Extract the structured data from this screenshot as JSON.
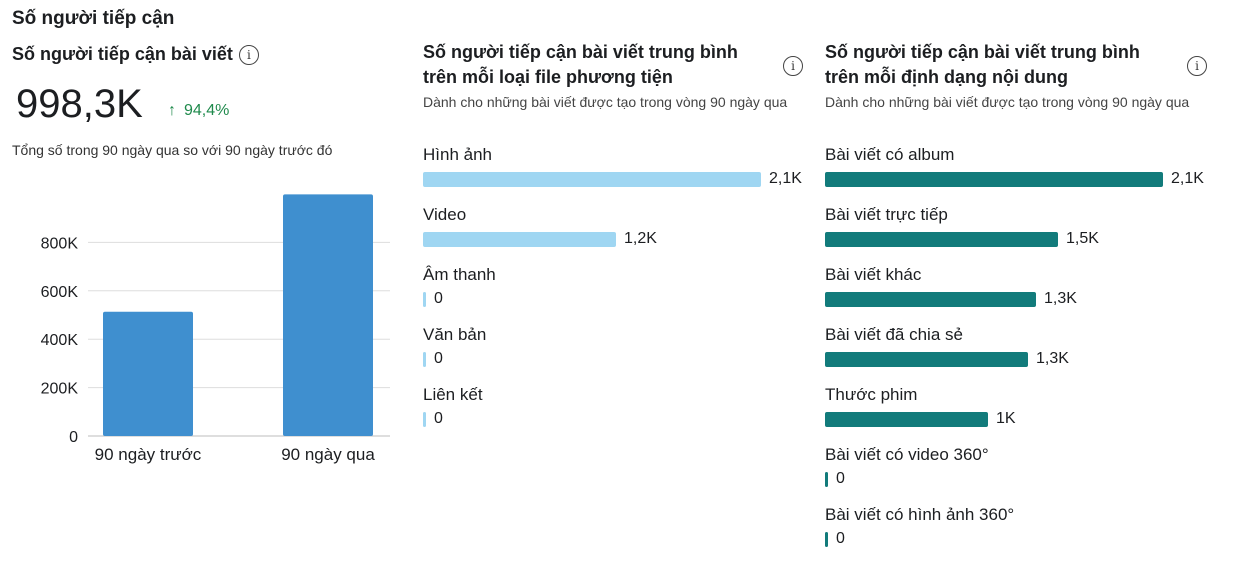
{
  "section_title": "Số người tiếp cận",
  "panel1": {
    "title": "Số người tiếp cận bài viết",
    "info_icon": "info-icon",
    "value": "998,3K",
    "delta_arrow": "↑",
    "delta": "94,4%",
    "subtitle": "Tổng số trong 90 ngày qua so với 90 ngày trước đó"
  },
  "panel2": {
    "title": "Số người tiếp cận bài viết trung bình trên mỗi loại file phương tiện",
    "subtitle": "Dành cho những bài viết được tạo trong vòng 90 ngày qua",
    "info_icon": "info-icon"
  },
  "panel3": {
    "title": "Số người tiếp cận bài viết trung bình trên mỗi định dạng nội dung",
    "subtitle": "Dành cho những bài viết được tạo trong vòng 90 ngày qua",
    "info_icon": "info-icon"
  },
  "chart_data": [
    {
      "type": "bar",
      "categories": [
        "90 ngày trước",
        "90 ngày qua"
      ],
      "values": [
        513500,
        998300
      ],
      "ylim": [
        0,
        1000000
      ],
      "yticks": [
        0,
        200000,
        400000,
        600000,
        800000
      ],
      "ytick_labels": [
        "0",
        "200K",
        "400K",
        "600K",
        "800K"
      ],
      "grid": true,
      "color": "#3f8fcf"
    },
    {
      "type": "bar",
      "orientation": "horizontal",
      "categories": [
        "Hình ảnh",
        "Video",
        "Âm thanh",
        "Văn bản",
        "Liên kết"
      ],
      "values": [
        2100,
        1200,
        0,
        0,
        0
      ],
      "value_labels": [
        "2,1K",
        "1,2K",
        "0",
        "0",
        "0"
      ],
      "color": "#9fd6f2"
    },
    {
      "type": "bar",
      "orientation": "horizontal",
      "categories": [
        "Bài viết có album",
        "Bài viết trực tiếp",
        "Bài viết khác",
        "Bài viết đã chia sẻ",
        "Thước phim",
        "Bài viết có video 360°",
        "Bài viết có hình ảnh 360°"
      ],
      "values": [
        2100,
        1450,
        1310,
        1260,
        1010,
        0,
        0
      ],
      "value_labels": [
        "2,1K",
        "1,5K",
        "1,3K",
        "1,3K",
        "1K",
        "0",
        "0"
      ],
      "color": "#127b7b"
    }
  ]
}
